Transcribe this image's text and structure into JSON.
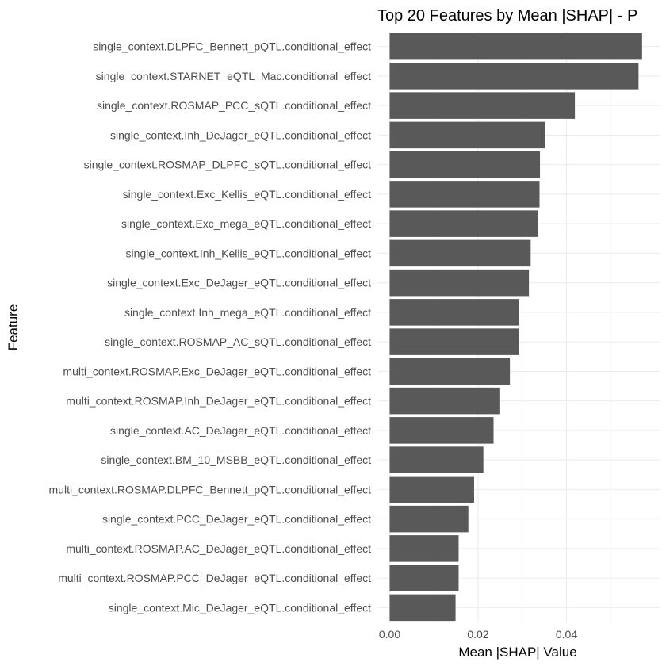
{
  "chart_data": {
    "type": "bar",
    "orientation": "horizontal",
    "title": "Top 20 Features by Mean |SHAP| - P",
    "xlabel": "Mean |SHAP| Value",
    "ylabel": "Feature",
    "xlim": [
      0,
      0.0595
    ],
    "x_ticks": [
      "0.00",
      "0.02",
      "0.04"
    ],
    "x_tick_values": [
      0,
      0.02,
      0.04
    ],
    "grid": true,
    "bar_color": "#595959",
    "categories": [
      "single_context.DLPFC_Bennett_pQTL.conditional_effect",
      "single_context.STARNET_eQTL_Mac.conditional_effect",
      "single_context.ROSMAP_PCC_sQTL.conditional_effect",
      "single_context.Inh_DeJager_eQTL.conditional_effect",
      "single_context.ROSMAP_DLPFC_sQTL.conditional_effect",
      "single_context.Exc_Kellis_eQTL.conditional_effect",
      "single_context.Exc_mega_eQTL.conditional_effect",
      "single_context.Inh_Kellis_eQTL.conditional_effect",
      "single_context.Exc_DeJager_eQTL.conditional_effect",
      "single_context.Inh_mega_eQTL.conditional_effect",
      "single_context.ROSMAP_AC_sQTL.conditional_effect",
      "multi_context.ROSMAP.Exc_DeJager_eQTL.conditional_effect",
      "multi_context.ROSMAP.Inh_DeJager_eQTL.conditional_effect",
      "single_context.AC_DeJager_eQTL.conditional_effect",
      "single_context.BM_10_MSBB_eQTL.conditional_effect",
      "multi_context.ROSMAP.DLPFC_Bennett_pQTL.conditional_effect",
      "single_context.PCC_DeJager_eQTL.conditional_effect",
      "multi_context.ROSMAP.AC_DeJager_eQTL.conditional_effect",
      "multi_context.ROSMAP.PCC_DeJager_eQTL.conditional_effect",
      "single_context.Mic_DeJager_eQTL.conditional_effect"
    ],
    "values": [
      0.0571,
      0.0563,
      0.0419,
      0.0352,
      0.034,
      0.0339,
      0.0336,
      0.0319,
      0.0315,
      0.0293,
      0.0292,
      0.0272,
      0.025,
      0.0235,
      0.0212,
      0.0191,
      0.0178,
      0.0156,
      0.0156,
      0.0149
    ]
  }
}
